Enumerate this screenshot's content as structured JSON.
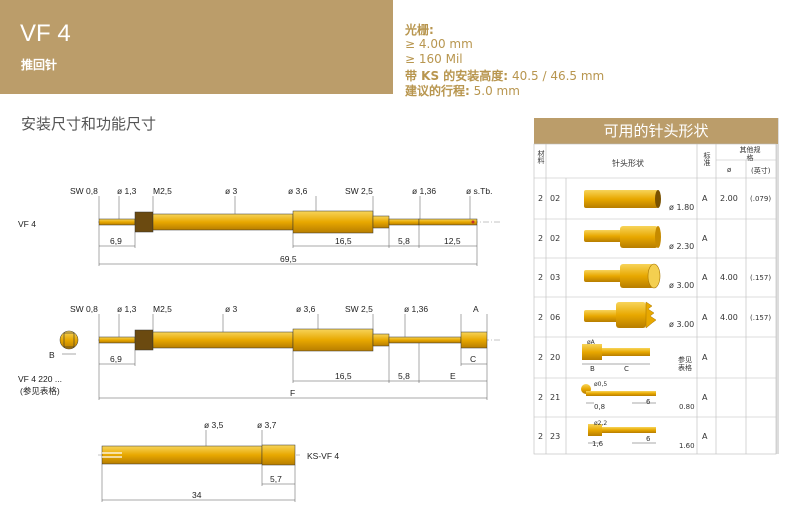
{
  "header": {
    "title": "VF 4",
    "subtitle": "推回针"
  },
  "specs": {
    "grid_label": "光栅:",
    "grid_mm": "≥ 4.00 mm",
    "grid_mil": "≥ 160 Mil",
    "ks_label": "带 KS 的安装高度:",
    "ks_value": "40.5 / 46.5 mm",
    "travel_label": "建议的行程:",
    "travel_value": "5.0 mm"
  },
  "section_title": "安装尺寸和功能尺寸",
  "drawing1": {
    "label": "VF 4",
    "dims_top": [
      "SW 0,8",
      "ø 1,3",
      "M2,5",
      "ø 3",
      "ø 3,6",
      "SW 2,5",
      "ø 1,36",
      "ø s.Tb."
    ],
    "dims_bottom": [
      "6,9",
      "16,5",
      "5,8",
      "12,5",
      "69,5"
    ]
  },
  "drawing2": {
    "label": "VF 4 220 ...",
    "label_sub": "(参见表格)",
    "dims_top": [
      "SW 0,8",
      "ø 1,3",
      "M2,5",
      "ø 3",
      "ø 3,6",
      "SW 2,5",
      "ø 1,36",
      "A"
    ],
    "dims_bottom": [
      "6,9",
      "16,5",
      "5,8",
      "E",
      "F",
      "B",
      "C"
    ]
  },
  "drawing3": {
    "label": "KS-VF 4",
    "dims": [
      "ø 3,5",
      "ø 3,7",
      "5,7",
      "34"
    ]
  },
  "table": {
    "title": "可用的针头形状",
    "col_material": "材料",
    "col_shape": "针头形状",
    "col_dim": "标准",
    "col_other": "其他规格",
    "col_other_mm": "ø",
    "col_other_in": "(英寸)",
    "rows": [
      {
        "mat": "2",
        "code": "02",
        "dia": "ø 1.80",
        "letter": "A",
        "mm": "2.00",
        "inch": "(.079)",
        "note": ""
      },
      {
        "mat": "2",
        "code": "02",
        "dia": "ø 2.30",
        "letter": "A",
        "mm": "",
        "inch": "",
        "note": ""
      },
      {
        "mat": "2",
        "code": "03",
        "dia": "ø 3.00",
        "letter": "A",
        "mm": "4.00",
        "inch": "(.157)",
        "note": ""
      },
      {
        "mat": "2",
        "code": "06",
        "dia": "ø 3.00",
        "letter": "A",
        "mm": "4.00",
        "inch": "(.157)",
        "note": ""
      },
      {
        "mat": "2",
        "code": "20",
        "dia": "",
        "letter": "A",
        "mm": "",
        "inch": "",
        "note": "参见表格",
        "sub": [
          "øA",
          "B",
          "C"
        ]
      },
      {
        "mat": "2",
        "code": "21",
        "dia": "0.80",
        "letter": "A",
        "mm": "",
        "inch": "",
        "note": "",
        "sub": [
          "ø0,5",
          "0,8",
          "6"
        ]
      },
      {
        "mat": "2",
        "code": "23",
        "dia": "1.60",
        "letter": "A",
        "mm": "",
        "inch": "",
        "note": "",
        "sub": [
          "ø2,2",
          "1,6",
          "6"
        ]
      }
    ]
  }
}
